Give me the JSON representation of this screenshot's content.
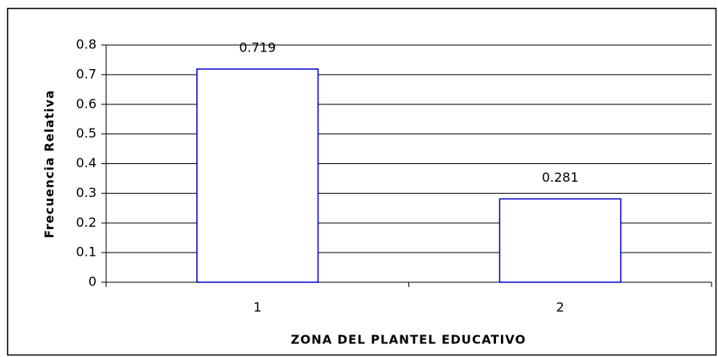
{
  "chart_data": {
    "type": "bar",
    "x_label": "ZONA DEL PLANTEL EDUCATIVO",
    "y_label": "Frecuencia Relativa",
    "categories": [
      "1",
      "2"
    ],
    "values": [
      0.719,
      0.281
    ],
    "color": "#0000cc",
    "ylim": [
      0,
      0.8
    ],
    "yticks": [
      0,
      0.1,
      0.2,
      0.3,
      0.4,
      0.5,
      0.6,
      0.7,
      0.8
    ],
    "grid": true
  }
}
